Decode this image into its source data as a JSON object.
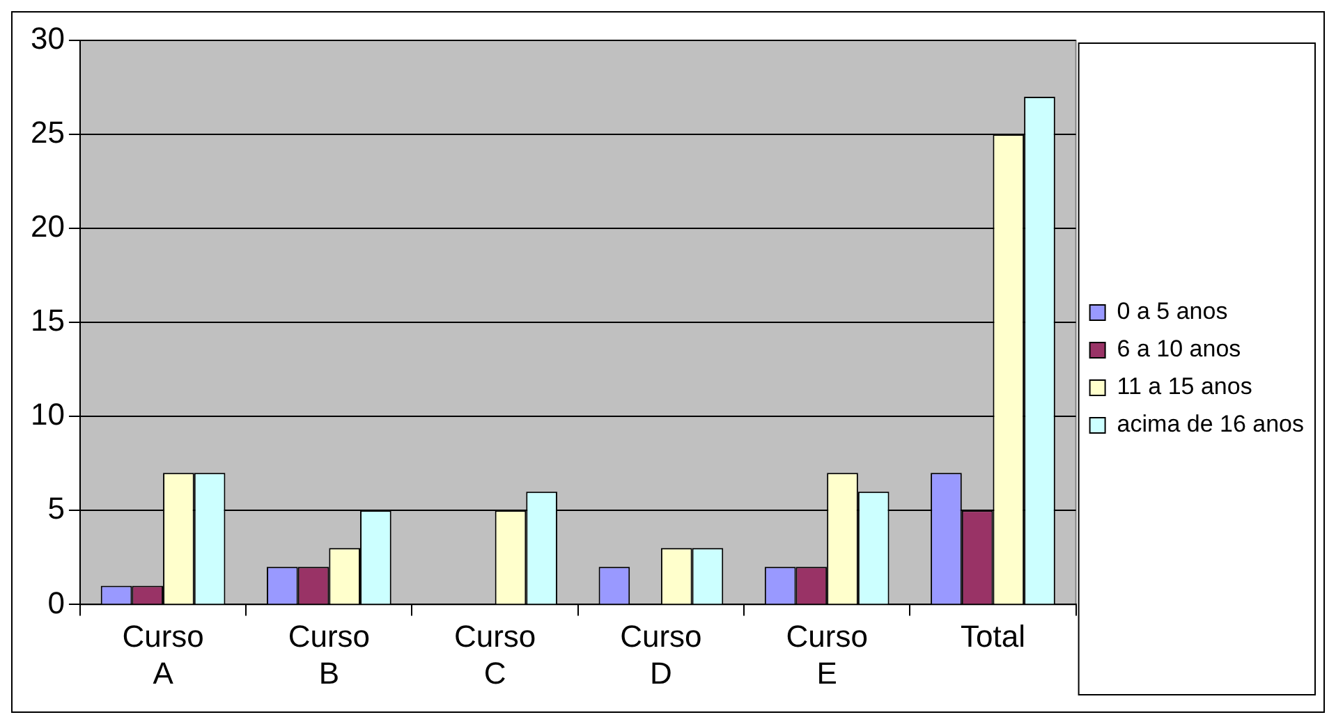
{
  "chart_data": {
    "type": "bar",
    "categories": [
      "Curso A",
      "Curso B",
      "Curso C",
      "Curso D",
      "Curso E",
      "Total"
    ],
    "series": [
      {
        "name": "0 a 5 anos",
        "color": "#9999ff",
        "values": [
          1,
          2,
          0,
          2,
          2,
          7
        ]
      },
      {
        "name": "6 a 10 anos",
        "color": "#993366",
        "values": [
          1,
          2,
          0,
          0,
          2,
          5
        ]
      },
      {
        "name": "11 a 15 anos",
        "color": "#ffffcc",
        "values": [
          7,
          3,
          5,
          3,
          7,
          25
        ]
      },
      {
        "name": "acima de 16 anos",
        "color": "#ccffff",
        "values": [
          7,
          5,
          6,
          3,
          6,
          27
        ]
      }
    ],
    "ylim": [
      0,
      30
    ],
    "yticks": [
      0,
      5,
      10,
      15,
      20,
      25,
      30
    ],
    "grid": "y",
    "legend": "right"
  }
}
